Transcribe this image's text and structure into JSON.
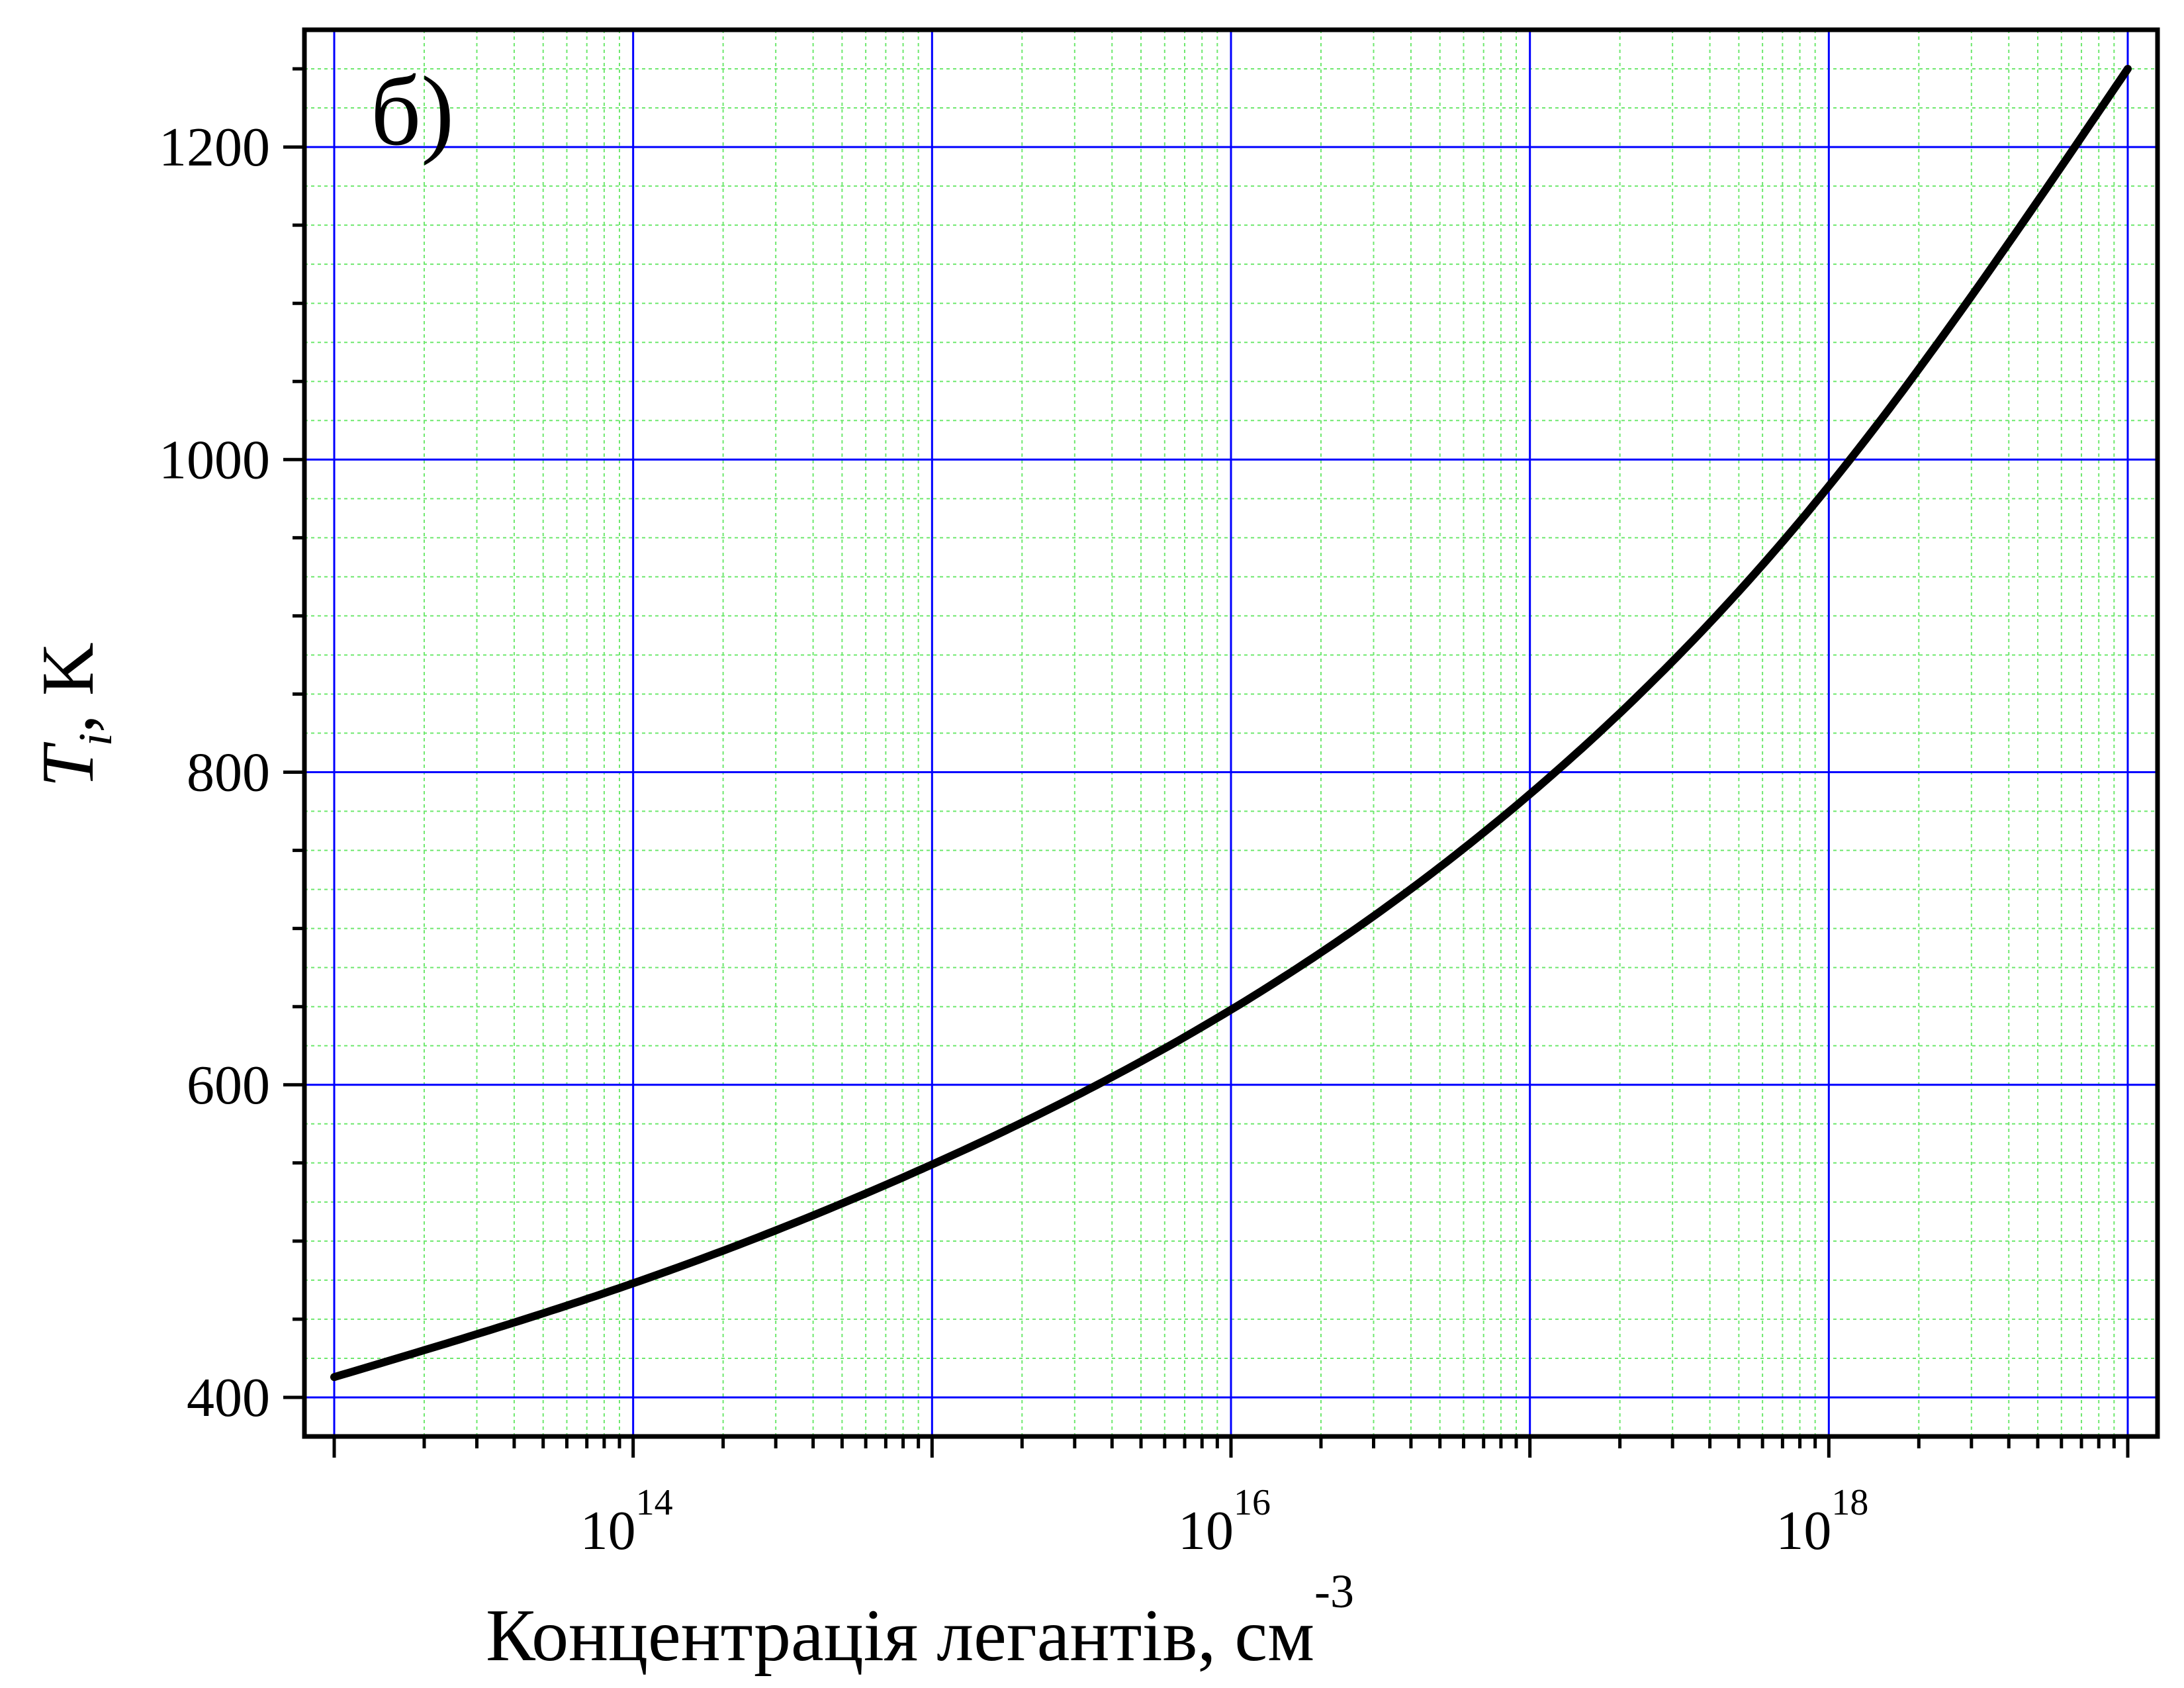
{
  "chart_data": {
    "type": "line",
    "panel_label": "б)",
    "x_axis": {
      "label": "Концентрація легантів, см",
      "label_superscript": "-3",
      "scale": "log",
      "range": [
        10000000000000.0,
        1e+19
      ],
      "ticks": [
        {
          "value": 100000000000000.0,
          "base": "10",
          "exponent": "14"
        },
        {
          "value": 1e+16,
          "base": "10",
          "exponent": "16"
        },
        {
          "value": 1e+18,
          "base": "10",
          "exponent": "18"
        }
      ]
    },
    "y_axis": {
      "label_main": "T",
      "label_sub": "i",
      "label_rest": ", K",
      "range": [
        375,
        1275
      ],
      "ticks": [
        {
          "value": 400,
          "label": "400"
        },
        {
          "value": 600,
          "label": "600"
        },
        {
          "value": 800,
          "label": "800"
        },
        {
          "value": 1000,
          "label": "1000"
        },
        {
          "value": 1200,
          "label": "1200"
        }
      ]
    },
    "grid": {
      "major": true,
      "minor": true,
      "major_color": "#0000ff",
      "minor_color": "#6ee86e"
    },
    "series": [
      {
        "color": "#000000",
        "points": [
          {
            "x": 10000000000000.0,
            "y": 413
          },
          {
            "x": 100000000000000.0,
            "y": 473
          },
          {
            "x": 1000000000000000.0,
            "y": 549
          },
          {
            "x": 1e+16,
            "y": 648
          },
          {
            "x": 1e+17,
            "y": 786
          },
          {
            "x": 1e+18,
            "y": 983
          },
          {
            "x": 1e+19,
            "y": 1250
          }
        ]
      }
    ]
  }
}
